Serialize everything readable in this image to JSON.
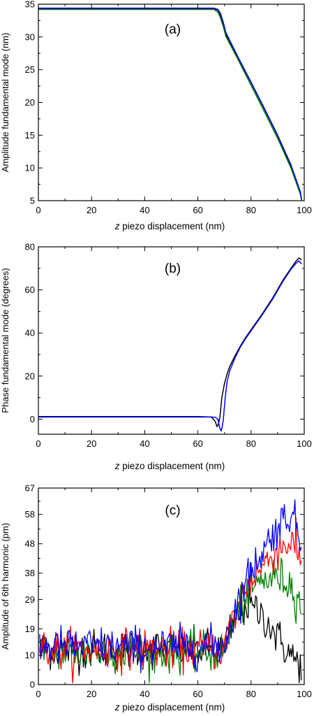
{
  "chart_data": [
    {
      "type": "line",
      "panel_label": "(a)",
      "xlabel_prefix": "z",
      "xlabel_rest": " piezo displacement (nm)",
      "ylabel": "Amplitude fundamental mode (nm)",
      "xlim": [
        0,
        100
      ],
      "ylim": [
        5,
        35
      ],
      "xticks": [
        0,
        20,
        40,
        60,
        80,
        100
      ],
      "yticks": [
        5,
        10,
        15,
        20,
        25,
        30,
        35
      ],
      "series": [
        {
          "color": "#000000",
          "x": [
            0,
            20,
            40,
            60,
            66,
            67.5,
            68.5,
            69.5,
            70.5,
            75,
            80,
            85,
            90,
            95,
            98.5,
            99
          ],
          "y": [
            34.3,
            34.3,
            34.3,
            34.3,
            34.3,
            34.1,
            33.3,
            32.0,
            30.4,
            26.9,
            23.0,
            19.0,
            14.9,
            10.3,
            6.3,
            5.1
          ]
        },
        {
          "color": "#008000",
          "x": [
            0,
            20,
            40,
            60,
            66,
            67.5,
            68.5,
            69.5,
            70.5,
            75,
            80,
            85,
            90,
            95,
            98.5,
            99
          ],
          "y": [
            34.2,
            34.2,
            34.2,
            34.2,
            34.2,
            33.8,
            32.9,
            31.6,
            30.1,
            26.6,
            22.6,
            18.6,
            14.5,
            10.0,
            6.0,
            5.0
          ]
        },
        {
          "color": "#0000ff",
          "x": [
            0,
            20,
            40,
            60,
            66,
            67.5,
            68.5,
            69.5,
            70.5,
            75,
            80,
            85,
            90,
            95,
            98.5,
            99
          ],
          "y": [
            34.4,
            34.4,
            34.4,
            34.4,
            34.4,
            34.2,
            33.6,
            32.3,
            30.7,
            27.0,
            23.1,
            19.1,
            15.0,
            10.5,
            6.4,
            5.2
          ]
        }
      ]
    },
    {
      "type": "line",
      "panel_label": "(b)",
      "xlabel_prefix": "z",
      "xlabel_rest": " piezo displacement (nm)",
      "ylabel": "Phase fundamental mode (degrees)",
      "xlim": [
        0,
        100
      ],
      "ylim": [
        -7,
        80
      ],
      "xticks": [
        0,
        20,
        40,
        60,
        80,
        100
      ],
      "yticks": [
        0,
        20,
        40,
        60,
        80
      ],
      "series": [
        {
          "color": "#000000",
          "x": [
            0,
            20,
            40,
            60,
            65,
            66.5,
            67.2,
            67.8,
            68.3,
            69,
            70,
            71,
            72,
            74,
            76,
            78,
            80,
            84,
            88,
            92,
            95,
            97,
            98,
            99
          ],
          "y": [
            1.2,
            1.2,
            1.2,
            1.2,
            1.0,
            -1.0,
            -3.5,
            -2.0,
            1.0,
            10.0,
            16.5,
            21.0,
            24.5,
            29.5,
            34.0,
            38.0,
            41.5,
            48.5,
            56.0,
            64.5,
            70.0,
            73.5,
            74.8,
            74.0
          ]
        },
        {
          "color": "#0000ff",
          "x": [
            0,
            20,
            40,
            60,
            65,
            66.5,
            67.5,
            68.2,
            68.8,
            69.5,
            70.3,
            71,
            72,
            74,
            76,
            78,
            80,
            84,
            88,
            92,
            95,
            97,
            98,
            99
          ],
          "y": [
            1.0,
            1.0,
            1.0,
            1.0,
            1.0,
            0.9,
            0.0,
            -4.0,
            -5.5,
            -1.0,
            10.0,
            17.5,
            22.5,
            28.5,
            33.5,
            37.5,
            41.0,
            48.0,
            55.5,
            64.0,
            69.5,
            72.5,
            73.5,
            72.0
          ]
        }
      ]
    },
    {
      "type": "line",
      "panel_label": "(c)",
      "xlabel_prefix": "z",
      "xlabel_rest": " piezo displacement (nm)",
      "ylabel": "Amplitude of 6th harmonic  (pm)",
      "xlim": [
        0,
        100
      ],
      "ylim": [
        0,
        67
      ],
      "xticks": [
        0,
        20,
        40,
        60,
        80,
        100
      ],
      "yticks": [
        0,
        10,
        19,
        29,
        38,
        48,
        58,
        67
      ],
      "noise": {
        "dx": 0.4,
        "sd": 3.4,
        "start": 0.5,
        "end": 99
      },
      "series": [
        {
          "color": "#000000",
          "x": [
            0,
            70,
            72,
            75,
            78,
            81,
            85,
            90,
            95,
            99
          ],
          "y": [
            12,
            12,
            18,
            24,
            27,
            26,
            23,
            16,
            10,
            6
          ]
        },
        {
          "color": "#008000",
          "x": [
            0,
            70,
            72,
            75,
            78,
            82,
            86,
            90,
            95,
            99
          ],
          "y": [
            11,
            11,
            18,
            25,
            30,
            34,
            36,
            37,
            34,
            27
          ]
        },
        {
          "color": "#ff0000",
          "x": [
            0,
            70,
            72,
            75,
            78,
            82,
            86,
            90,
            95,
            99
          ],
          "y": [
            12,
            12,
            19,
            27,
            33,
            38,
            42,
            46,
            49,
            42
          ]
        },
        {
          "color": "#0000ff",
          "x": [
            0,
            70,
            72,
            75,
            78,
            82,
            86,
            90,
            95,
            99
          ],
          "y": [
            13,
            13,
            20,
            28,
            35,
            42,
            48,
            54,
            59,
            48
          ]
        }
      ]
    }
  ]
}
